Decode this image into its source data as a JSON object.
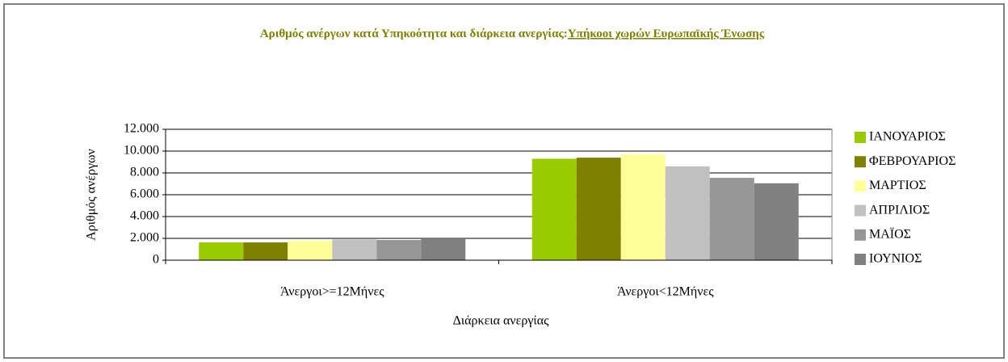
{
  "chart_data": {
    "type": "bar",
    "title": [
      "Αριθμός ανέργων  κατά Υπηκοότητα και διάρκεια ανεργίας:",
      "Υπήκοοι χωρών Ευρωπαϊκής Ένωσης"
    ],
    "x_label": "Διάρκεια ανεργίας",
    "y_label": "Αριθμός ανέργων",
    "categories": [
      "Άνεργοι>=12Μήνες",
      "Άνεργοι<12Μήνες"
    ],
    "series": [
      {
        "name": "ΙΑΝΟΥΑΡΙΟΣ",
        "color": "#99cc00",
        "values": [
          1630,
          9300
        ]
      },
      {
        "name": "ΦΕΒΡΟΥΑΡΙΟΣ",
        "color": "#808000",
        "values": [
          1630,
          9400
        ]
      },
      {
        "name": "ΜΑΡΤΙΟΣ",
        "color": "#ffff99",
        "values": [
          1780,
          9700
        ]
      },
      {
        "name": "ΑΠΡΙΛΙΟΣ",
        "color": "#c0c0c0",
        "values": [
          1900,
          8600
        ]
      },
      {
        "name": "ΜΑΪΟΣ",
        "color": "#969696",
        "values": [
          1850,
          7550
        ]
      },
      {
        "name": "ΙΟΥΝΙΟΣ",
        "color": "#808080",
        "values": [
          1930,
          7050
        ]
      }
    ],
    "ylim": [
      0,
      12000
    ],
    "yticks": [
      0,
      {
        "value": 2000,
        "label": "2.000"
      },
      {
        "value": 4000,
        "label": "4.000"
      },
      {
        "value": 6000,
        "label": "6.000"
      },
      {
        "value": 8000,
        "label": "8.000"
      },
      {
        "value": 10000,
        "label": "10.000"
      },
      {
        "value": 12000,
        "label": "12.000"
      }
    ],
    "grid": true,
    "legend": "right"
  }
}
